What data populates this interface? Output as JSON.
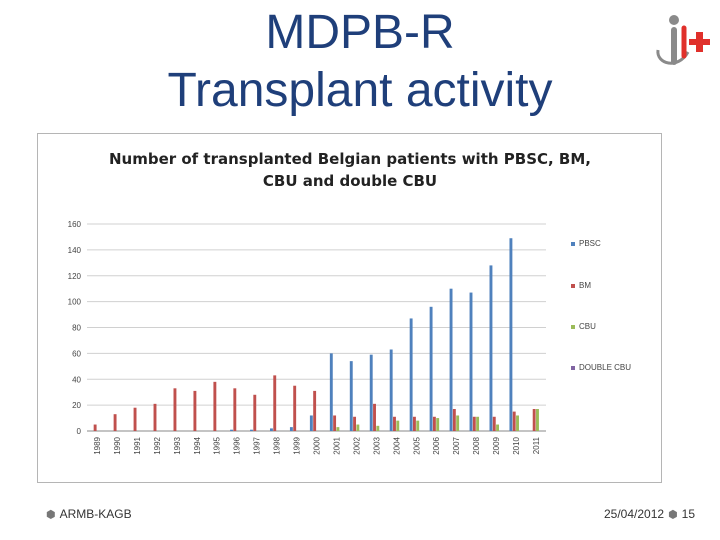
{
  "slide": {
    "title_line1": "MDPB-R",
    "title_line2": "Transplant activity",
    "footer_left": "ARMB-KAGB",
    "footer_date": "25/04/2012",
    "page_number": "15"
  },
  "colors": {
    "title": "#1f3f7a",
    "logo_red": "#e0302b",
    "logo_gray": "#8a8a8a"
  },
  "chart_data": {
    "type": "bar",
    "title_line1": "Number of transplanted Belgian patients with PBSC, BM,",
    "title_line2": "CBU and double CBU",
    "categories": [
      "1989",
      "1990",
      "1991",
      "1992",
      "1993",
      "1994",
      "1995",
      "1996",
      "1997",
      "1998",
      "1999",
      "2000",
      "2001",
      "2002",
      "2003",
      "2004",
      "2005",
      "2006",
      "2007",
      "2008",
      "2009",
      "2010",
      "2011"
    ],
    "ylim": [
      0,
      160
    ],
    "yticks": [
      0,
      20,
      40,
      60,
      80,
      100,
      120,
      140,
      160
    ],
    "xlabel": "",
    "ylabel": "",
    "legend_position": "right",
    "series": [
      {
        "name": "PBSC",
        "color": "#4f81bd",
        "values": [
          0,
          0,
          0,
          0,
          0,
          0,
          0,
          1,
          1,
          2,
          3,
          12,
          60,
          54,
          59,
          63,
          87,
          96,
          110,
          107,
          128,
          149,
          0
        ]
      },
      {
        "name": "BM",
        "color": "#c0504d",
        "values": [
          5,
          13,
          18,
          21,
          33,
          31,
          38,
          33,
          28,
          43,
          35,
          31,
          12,
          11,
          21,
          11,
          11,
          11,
          17,
          11,
          11,
          15,
          17
        ]
      },
      {
        "name": "CBU",
        "color": "#9bbb59",
        "values": [
          0,
          0,
          0,
          0,
          0,
          0,
          0,
          0,
          0,
          0,
          0,
          0,
          3,
          5,
          4,
          8,
          8,
          10,
          12,
          11,
          5,
          12,
          17
        ]
      },
      {
        "name": "DOUBLE CBU",
        "color": "#8064a2",
        "values": [
          0,
          0,
          0,
          0,
          0,
          0,
          0,
          0,
          0,
          0,
          0,
          0,
          0,
          0,
          0,
          0,
          0,
          0,
          0,
          0,
          0,
          0,
          0
        ]
      }
    ]
  }
}
